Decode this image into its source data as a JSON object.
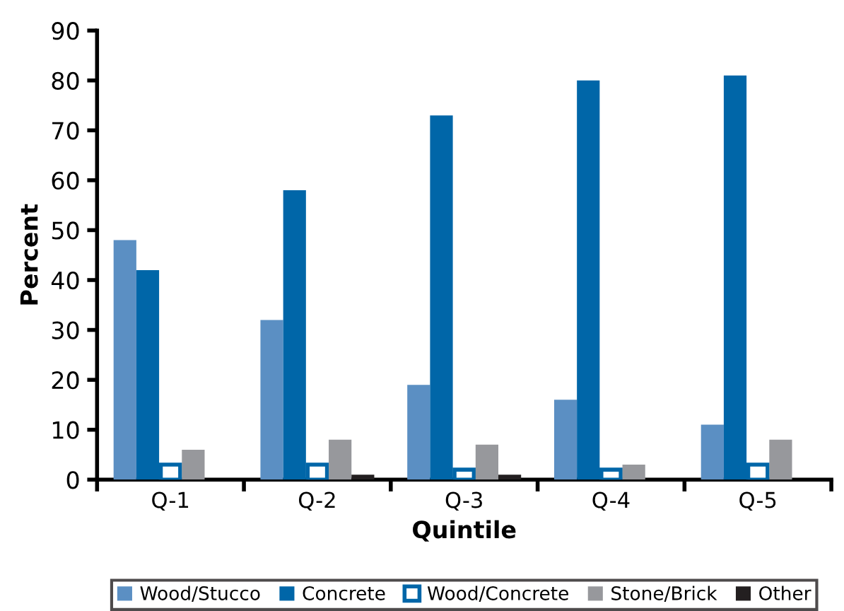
{
  "chart_data": {
    "type": "bar",
    "xlabel": "Quintile",
    "ylabel": "Percent",
    "categories": [
      "Q-1",
      "Q-2",
      "Q-3",
      "Q-4",
      "Q-5"
    ],
    "series": [
      {
        "name": "Wood/Stucco",
        "color": "#5b8fc3",
        "values": [
          48,
          32,
          19,
          16,
          11
        ]
      },
      {
        "name": "Concrete",
        "color": "#0066a8",
        "values": [
          42,
          58,
          73,
          80,
          81
        ]
      },
      {
        "name": "Wood/Concrete",
        "color": "#ffffff",
        "values": [
          3,
          3,
          2,
          2,
          3
        ]
      },
      {
        "name": "Stone/Brick",
        "color": "#97989c",
        "values": [
          6,
          8,
          7,
          3,
          8
        ]
      },
      {
        "name": "Other",
        "color": "#231f20",
        "values": [
          0,
          1,
          1,
          0,
          0
        ]
      }
    ],
    "ylim": [
      0,
      90
    ],
    "yticks": [
      0,
      10,
      20,
      30,
      40,
      50,
      60,
      70,
      80,
      90
    ],
    "grid": false,
    "legend": "bottom"
  }
}
